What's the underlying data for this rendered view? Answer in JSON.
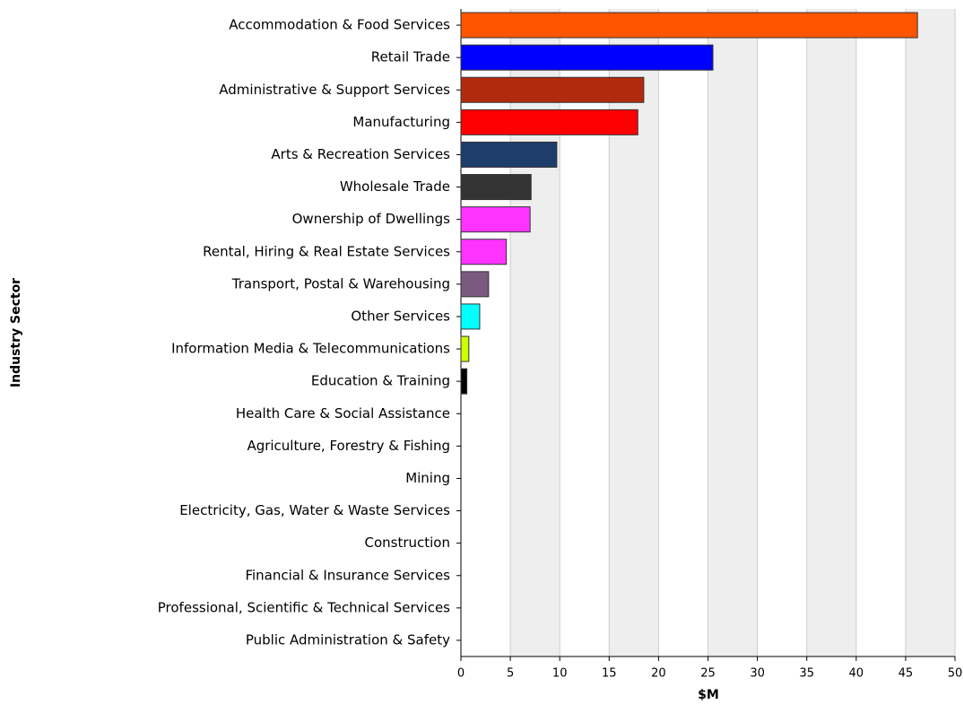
{
  "chart_data": {
    "type": "bar",
    "orientation": "horizontal",
    "xlabel": "$M",
    "ylabel": "Industry Sector",
    "categories": [
      "Accommodation & Food Services",
      "Retail Trade",
      "Administrative & Support Services",
      "Manufacturing",
      "Arts & Recreation Services",
      "Wholesale Trade",
      "Ownership of Dwellings",
      "Rental, Hiring & Real Estate Services",
      "Transport, Postal & Warehousing",
      "Other Services",
      "Information Media & Telecommunications",
      "Education & Training",
      "Health Care & Social Assistance",
      "Agriculture, Forestry & Fishing",
      "Mining",
      "Electricity, Gas, Water & Waste Services",
      "Construction",
      "Financial & Insurance Services",
      "Professional, Scientific & Technical Services",
      "Public Administration & Safety"
    ],
    "values": [
      46.2,
      25.5,
      18.5,
      17.9,
      9.7,
      7.1,
      7.0,
      4.6,
      2.8,
      1.9,
      0.8,
      0.6,
      0,
      0,
      0,
      0,
      0,
      0,
      0,
      0
    ],
    "colors": [
      "#ff5500",
      "#0000ff",
      "#b22a0e",
      "#ff0000",
      "#1f3d6b",
      "#333333",
      "#ff33ff",
      "#ff33ff",
      "#7a5a7e",
      "#00ffff",
      "#ccff00",
      "#000000",
      "#999999",
      "#999999",
      "#999999",
      "#999999",
      "#999999",
      "#999999",
      "#999999",
      "#999999"
    ],
    "xlim": [
      0,
      50
    ],
    "xticks": [
      0,
      5,
      10,
      15,
      20,
      25,
      30,
      35,
      40,
      45,
      50
    ],
    "grid": true
  }
}
